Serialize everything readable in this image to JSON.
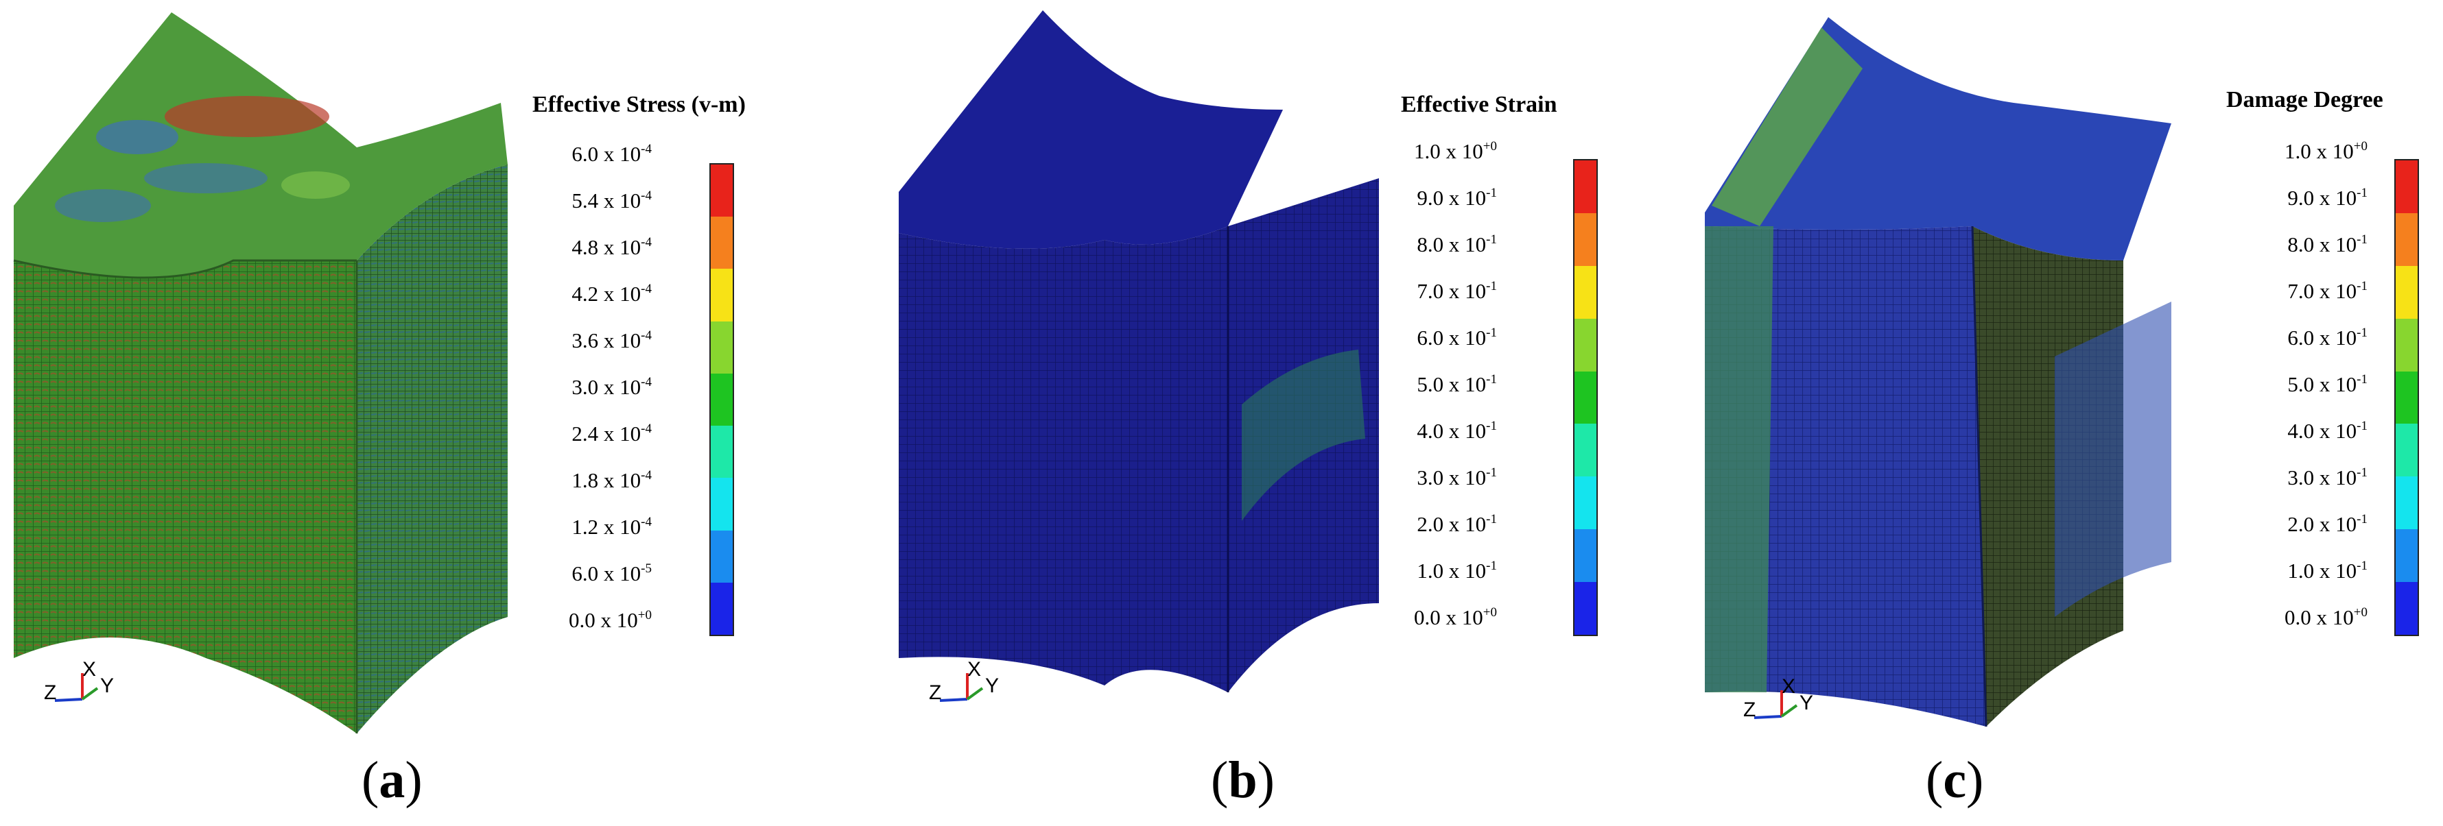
{
  "panels": [
    {
      "id": "a",
      "legend_title": "Effective Stress (v-m)",
      "ticks": [
        "6.0 x 10-4",
        "5.4 x 10-4",
        "4.8 x 10-4",
        "4.2 x 10-4",
        "3.6 x 10-4",
        "3.0 x 10-4",
        "2.4 x 10-4",
        "1.8 x 10-4",
        "1.2 x 10-4",
        "6.0 x 10-5",
        "0.0 x 10+0"
      ],
      "caption": "a"
    },
    {
      "id": "b",
      "legend_title": "Effective Strain",
      "ticks": [
        "1.0 x 10+0",
        "9.0 x 10-1",
        "8.0 x 10-1",
        "7.0 x 10-1",
        "6.0 x 10-1",
        "5.0 x 10-1",
        "4.0 x 10-1",
        "3.0 x 10-1",
        "2.0 x 10-1",
        "1.0 x 10-1",
        "0.0 x 10+0"
      ],
      "caption": "b"
    },
    {
      "id": "c",
      "legend_title": "Damage Degree",
      "ticks": [
        "1.0 x 10+0",
        "9.0 x 10-1",
        "8.0 x 10-1",
        "7.0 x 10-1",
        "6.0 x 10-1",
        "5.0 x 10-1",
        "4.0 x 10-1",
        "3.0 x 10-1",
        "2.0 x 10-1",
        "1.0 x 10-1",
        "0.0 x 10+0"
      ],
      "caption": "c"
    }
  ],
  "colorbar": [
    "#e8231b",
    "#f5801e",
    "#f7e216",
    "#88d62f",
    "#1ec421",
    "#1ee8a8",
    "#14e4ee",
    "#1a8cef",
    "#1a24e8"
  ],
  "axis_labels": [
    "Z",
    "X",
    "Y"
  ]
}
